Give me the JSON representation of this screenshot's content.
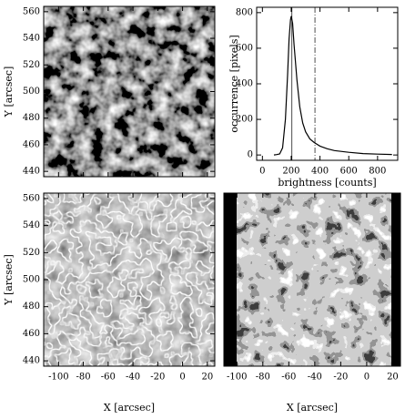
{
  "chart_data": [
    {
      "type": "image",
      "ylabel": "Y [arcsec]",
      "ylim": [
        436,
        564
      ],
      "yticks": [
        440,
        460,
        480,
        500,
        520,
        540,
        560
      ],
      "style": "granulation"
    },
    {
      "type": "line",
      "xlabel": "brightness [counts]",
      "ylabel": "occurrence [pixels]",
      "x": [
        80,
        100,
        120,
        140,
        160,
        175,
        185,
        195,
        200,
        210,
        220,
        240,
        260,
        280,
        300,
        330,
        360,
        400,
        450,
        500,
        600,
        700,
        800,
        900
      ],
      "series": [
        {
          "color": "#000000",
          "values": [
            0,
            2,
            6,
            40,
            200,
            450,
            650,
            760,
            780,
            740,
            620,
            420,
            270,
            180,
            130,
            90,
            70,
            50,
            35,
            25,
            15,
            8,
            5,
            3
          ]
        }
      ],
      "vlines": [
        205,
        365
      ],
      "xlim": [
        -40,
        940
      ],
      "xticks": [
        0,
        200,
        400,
        600,
        800
      ],
      "ylim": [
        -30,
        830
      ],
      "yticks": [
        0,
        200,
        400,
        600,
        800
      ]
    },
    {
      "type": "image",
      "xlabel": "X [arcsec]",
      "ylabel": "Y [arcsec]",
      "xlim": [
        -112,
        26
      ],
      "xticks": [
        -100,
        -80,
        -60,
        -40,
        -20,
        0,
        20
      ],
      "ylim": [
        436,
        564
      ],
      "yticks": [
        440,
        460,
        480,
        500,
        520,
        540,
        560
      ],
      "style": "contours"
    },
    {
      "type": "image",
      "xlabel": "X [arcsec]",
      "xlim": [
        -110,
        26
      ],
      "xticks": [
        -100,
        -80,
        -60,
        -40,
        -20,
        0,
        20
      ],
      "style": "segmented"
    }
  ]
}
